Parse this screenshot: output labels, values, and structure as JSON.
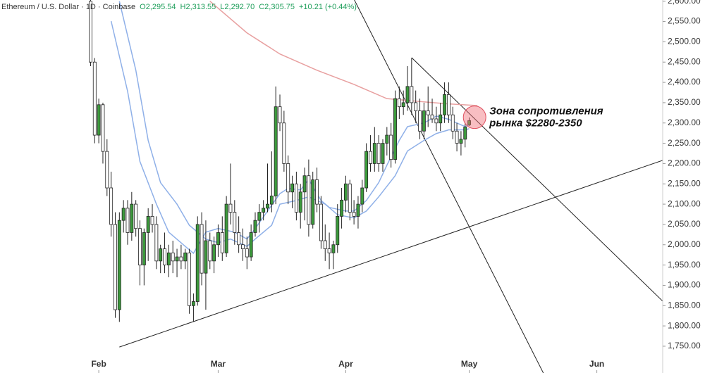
{
  "chart_data": {
    "type": "candlestick",
    "title": "Ethereum / U.S. Dollar · 1D · Coinbase",
    "header_values": [
      "O2,295.54",
      "H2,313.55",
      "L2,292.70",
      "C2,305.75",
      "+10.21 (+0.44%)"
    ],
    "up_color": "#3c9a3c",
    "down_color": "#ffffff",
    "xlim": [
      -24,
      137
    ],
    "ylim": [
      1684,
      2603
    ],
    "xticks": [
      {
        "value": 0,
        "label": "Feb"
      },
      {
        "value": 29,
        "label": "Mar"
      },
      {
        "value": 60,
        "label": "Apr"
      },
      {
        "value": 90,
        "label": "May"
      },
      {
        "value": 121,
        "label": "Jun"
      }
    ],
    "yticks": [
      {
        "value": 1750,
        "label": "1,750.00"
      },
      {
        "value": 1800,
        "label": "1,800.00"
      },
      {
        "value": 1850,
        "label": "1,850.00"
      },
      {
        "value": 1900,
        "label": "1,900.00"
      },
      {
        "value": 1950,
        "label": "1,950.00"
      },
      {
        "value": 2000,
        "label": "2,000.00"
      },
      {
        "value": 2050,
        "label": "2,050.00"
      },
      {
        "value": 2100,
        "label": "2,100.00"
      },
      {
        "value": 2150,
        "label": "2,150.00"
      },
      {
        "value": 2200,
        "label": "2,200.00"
      },
      {
        "value": 2250,
        "label": "2,250.00"
      },
      {
        "value": 2300,
        "label": "2,300.00"
      },
      {
        "value": 2350,
        "label": "2,350.00"
      },
      {
        "value": 2400,
        "label": "2,400.00"
      },
      {
        "value": 2450,
        "label": "2,450.00"
      },
      {
        "value": 2500,
        "label": "2,500.00"
      },
      {
        "value": 2550,
        "label": "2,550.00"
      },
      {
        "value": 2600,
        "label": "2,600.00"
      }
    ],
    "x": [
      -2,
      -1,
      0,
      1,
      2,
      3,
      4,
      5,
      6,
      7,
      8,
      9,
      10,
      11,
      12,
      13,
      14,
      15,
      16,
      17,
      18,
      19,
      20,
      21,
      22,
      23,
      24,
      25,
      26,
      27,
      28,
      29,
      30,
      31,
      32,
      33,
      34,
      35,
      36,
      37,
      38,
      39,
      40,
      41,
      42,
      43,
      44,
      45,
      46,
      47,
      48,
      49,
      50,
      51,
      52,
      53,
      54,
      55,
      56,
      57,
      58,
      59,
      60,
      61,
      62,
      63,
      64,
      65,
      66,
      67,
      68,
      69,
      70,
      71,
      72,
      73,
      74,
      75,
      76,
      77,
      78,
      79,
      80,
      81,
      82,
      83,
      84,
      85,
      86,
      87,
      88,
      89,
      90
    ],
    "candles": [
      [
        2600,
        2620,
        2440,
        2450
      ],
      [
        2450,
        2460,
        2250,
        2270
      ],
      [
        2270,
        2360,
        2250,
        2345
      ],
      [
        2345,
        2350,
        2200,
        2230
      ],
      [
        2230,
        2260,
        2120,
        2140
      ],
      [
        2140,
        2180,
        2020,
        2050
      ],
      [
        2050,
        2080,
        1820,
        1840
      ],
      [
        1840,
        2080,
        1810,
        2060
      ],
      [
        2060,
        2110,
        2030,
        2090
      ],
      [
        2090,
        2110,
        2000,
        2030
      ],
      [
        2030,
        2130,
        2010,
        2100
      ],
      [
        2100,
        2110,
        2020,
        2040
      ],
      [
        2040,
        2060,
        1900,
        1950
      ],
      [
        1950,
        2040,
        1900,
        2030
      ],
      [
        2030,
        2090,
        1960,
        2070
      ],
      [
        2070,
        2100,
        2030,
        2050
      ],
      [
        2050,
        2070,
        1940,
        1960
      ],
      [
        1960,
        2000,
        1930,
        1990
      ],
      [
        1990,
        2030,
        1930,
        1950
      ],
      [
        1950,
        2000,
        1920,
        1980
      ],
      [
        1980,
        2010,
        1930,
        1960
      ],
      [
        1960,
        1990,
        1920,
        1970
      ],
      [
        1970,
        2000,
        1940,
        1960
      ],
      [
        1960,
        1990,
        1940,
        1980
      ],
      [
        1980,
        1990,
        1830,
        1850
      ],
      [
        1850,
        1880,
        1810,
        1860
      ],
      [
        1860,
        2070,
        1850,
        2050
      ],
      [
        2050,
        2080,
        1900,
        1930
      ],
      [
        1930,
        2060,
        1840,
        2010
      ],
      [
        2010,
        2030,
        1940,
        1960
      ],
      [
        1960,
        2020,
        1930,
        2000
      ],
      [
        2000,
        2050,
        1970,
        2030
      ],
      [
        2030,
        2070,
        1960,
        1980
      ],
      [
        1980,
        2120,
        1970,
        2100
      ],
      [
        2100,
        2200,
        2050,
        2080
      ],
      [
        2080,
        2110,
        2000,
        2030
      ],
      [
        2030,
        2070,
        1980,
        2000
      ],
      [
        2000,
        2040,
        1960,
        1990
      ],
      [
        1990,
        2020,
        1940,
        1970
      ],
      [
        1970,
        2050,
        1960,
        2030
      ],
      [
        2030,
        2080,
        2020,
        2060
      ],
      [
        2060,
        2100,
        2030,
        2080
      ],
      [
        2080,
        2110,
        2060,
        2090
      ],
      [
        2090,
        2200,
        2080,
        2100
      ],
      [
        2100,
        2230,
        2080,
        2120
      ],
      [
        2120,
        2390,
        2100,
        2340
      ],
      [
        2340,
        2370,
        2280,
        2300
      ],
      [
        2300,
        2330,
        2180,
        2200
      ],
      [
        2200,
        2220,
        2100,
        2130
      ],
      [
        2130,
        2170,
        2090,
        2150
      ],
      [
        2150,
        2180,
        2060,
        2080
      ],
      [
        2080,
        2150,
        2040,
        2130
      ],
      [
        2130,
        2190,
        2060,
        2170
      ],
      [
        2170,
        2210,
        2020,
        2050
      ],
      [
        2050,
        2180,
        2040,
        2160
      ],
      [
        2160,
        2190,
        2080,
        2100
      ],
      [
        2100,
        2120,
        1990,
        2010
      ],
      [
        2010,
        2050,
        1960,
        1990
      ],
      [
        1990,
        2030,
        1940,
        1980
      ],
      [
        1980,
        2010,
        1940,
        2000
      ],
      [
        2000,
        2100,
        1980,
        2070
      ],
      [
        2070,
        2140,
        2040,
        2110
      ],
      [
        2110,
        2170,
        2080,
        2150
      ],
      [
        2150,
        2160,
        2060,
        2080
      ],
      [
        2080,
        2110,
        2050,
        2070
      ],
      [
        2070,
        2120,
        2040,
        2100
      ],
      [
        2100,
        2160,
        2080,
        2140
      ],
      [
        2140,
        2250,
        2130,
        2230
      ],
      [
        2230,
        2270,
        2180,
        2200
      ],
      [
        2200,
        2290,
        2180,
        2250
      ],
      [
        2250,
        2270,
        2180,
        2200
      ],
      [
        2200,
        2260,
        2180,
        2250
      ],
      [
        2250,
        2290,
        2220,
        2270
      ],
      [
        2270,
        2300,
        2190,
        2210
      ],
      [
        2210,
        2380,
        2200,
        2360
      ],
      [
        2360,
        2390,
        2310,
        2340
      ],
      [
        2340,
        2380,
        2320,
        2350
      ],
      [
        2350,
        2440,
        2330,
        2390
      ],
      [
        2390,
        2460,
        2320,
        2350
      ],
      [
        2350,
        2380,
        2300,
        2330
      ],
      [
        2330,
        2360,
        2260,
        2280
      ],
      [
        2280,
        2350,
        2260,
        2330
      ],
      [
        2330,
        2390,
        2290,
        2320
      ],
      [
        2320,
        2360,
        2300,
        2310
      ],
      [
        2310,
        2340,
        2280,
        2300
      ],
      [
        2300,
        2350,
        2280,
        2320
      ],
      [
        2320,
        2400,
        2300,
        2370
      ],
      [
        2370,
        2400,
        2300,
        2320
      ],
      [
        2320,
        2340,
        2260,
        2280
      ],
      [
        2280,
        2300,
        2230,
        2250
      ],
      [
        2250,
        2280,
        2220,
        2260
      ],
      [
        2260,
        2300,
        2240,
        2290
      ],
      [
        2295.54,
        2313.55,
        2292.7,
        2305.75
      ]
    ],
    "lines": [
      {
        "color": "#8fb0e8",
        "x": [
          3,
          7,
          10,
          14,
          17,
          21,
          23,
          26,
          29,
          33,
          36,
          38,
          41,
          44,
          46,
          49,
          51,
          54,
          56,
          60,
          62,
          65,
          68,
          70,
          73,
          75,
          79,
          82,
          85,
          89,
          90
        ],
        "values": [
          2551,
          2378,
          2205,
          2100,
          2031,
          1996,
          1979,
          2031,
          2040,
          2031,
          2014,
          2040,
          2083,
          2126,
          2139,
          2135,
          2161,
          2109,
          2092,
          2083,
          2083,
          2109,
          2153,
          2196,
          2257,
          2291,
          2300,
          2317,
          2309,
          2291,
          2295
        ]
      },
      {
        "color": "#8fb0e8",
        "x": [
          5,
          9,
          12,
          15,
          19,
          22,
          26,
          29,
          32,
          36,
          38,
          42,
          44,
          48,
          51,
          55,
          58,
          62,
          65,
          68,
          72,
          75,
          79,
          82,
          85,
          89,
          90
        ],
        "values": [
          2600,
          2430,
          2257,
          2153,
          2100,
          2048,
          2014,
          2005,
          2014,
          1996,
          2014,
          2048,
          2100,
          2109,
          2118,
          2100,
          2074,
          2066,
          2083,
          2118,
          2170,
          2231,
          2257,
          2274,
          2283,
          2283,
          2286
        ]
      },
      {
        "color": "#e8a0a0",
        "x": [
          27,
          36,
          44,
          53,
          62,
          70,
          79,
          85,
          92
        ],
        "values": [
          2600,
          2522,
          2470,
          2430,
          2395,
          2360,
          2352,
          2347,
          2343
        ]
      }
    ],
    "trendlines": [
      {
        "x": [
          62,
          108
        ],
        "values": [
          2605,
          1684
        ]
      },
      {
        "x": [
          76,
          137
        ],
        "values": [
          2461,
          1861
        ]
      },
      {
        "x": [
          5,
          137
        ],
        "values": [
          1748,
          2208
        ]
      }
    ],
    "annotation": {
      "lines": [
        "Зона сопротивления",
        "рынка $2280-2350"
      ],
      "x": 91.3,
      "y": 2314
    }
  }
}
